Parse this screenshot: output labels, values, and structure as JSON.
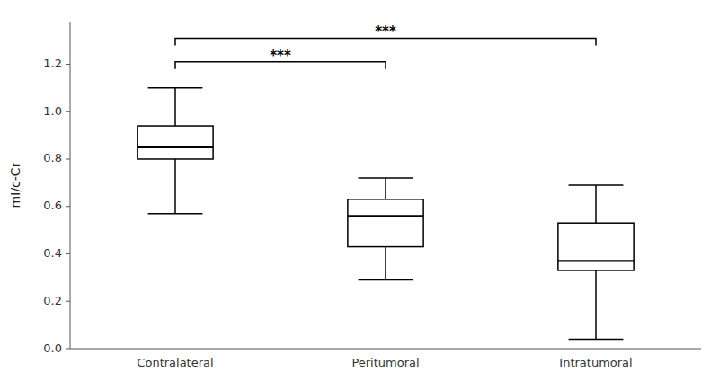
{
  "chart_data": {
    "type": "box",
    "categories": [
      "Contralateral",
      "Peritumoral",
      "Intratumoral"
    ],
    "boxes": [
      {
        "min": 0.57,
        "q1": 0.8,
        "median": 0.85,
        "q3": 0.94,
        "max": 1.1
      },
      {
        "min": 0.29,
        "q1": 0.43,
        "median": 0.56,
        "q3": 0.63,
        "max": 0.72
      },
      {
        "min": 0.04,
        "q1": 0.33,
        "median": 0.37,
        "q3": 0.53,
        "max": 0.69
      }
    ],
    "ylabel": "mI/c-Cr",
    "ylim": [
      0.0,
      1.38
    ],
    "yticks": [
      {
        "value": 0.0,
        "label": "0.0"
      },
      0.2,
      0.4,
      0.6,
      0.8,
      {
        "value": 1.0,
        "label": "1.0"
      },
      1.2
    ],
    "color": "#000000",
    "grid": false,
    "annotations": [
      {
        "text": "***",
        "between": [
          "Contralateral",
          "Peritumoral"
        ],
        "y": 1.21
      },
      {
        "text": "***",
        "between": [
          "Contralateral",
          "Intratumoral"
        ],
        "y": 1.31
      }
    ]
  }
}
